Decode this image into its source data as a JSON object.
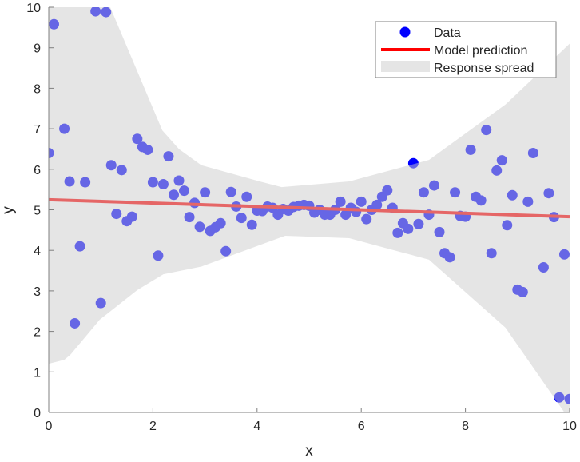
{
  "chart_data": {
    "type": "scatter",
    "title": "",
    "xlabel": "x",
    "ylabel": "y",
    "xlim": [
      0,
      10
    ],
    "ylim": [
      0,
      10
    ],
    "xticks": [
      0,
      2,
      4,
      6,
      8,
      10
    ],
    "yticks": [
      0,
      1,
      2,
      3,
      4,
      5,
      6,
      7,
      8,
      9,
      10
    ],
    "grid": false,
    "legend": {
      "placement": "top-right",
      "entries": [
        "Data",
        "Model prediction",
        "Response spread"
      ]
    },
    "colors": {
      "data": "#0000ff",
      "model": "#ff0000",
      "spread": "#cbcbcb",
      "axis": "#808080"
    },
    "series": [
      {
        "name": "Data",
        "kind": "scatter",
        "points": [
          [
            0,
            6.4
          ],
          [
            0.1,
            9.58
          ],
          [
            0.3,
            7.0
          ],
          [
            0.4,
            5.7
          ],
          [
            0.5,
            2.2
          ],
          [
            0.6,
            4.1
          ],
          [
            0.7,
            5.68
          ],
          [
            0.9,
            9.9
          ],
          [
            1.0,
            2.7
          ],
          [
            1.1,
            9.88
          ],
          [
            1.2,
            6.1
          ],
          [
            1.3,
            4.9
          ],
          [
            1.4,
            5.98
          ],
          [
            1.5,
            4.72
          ],
          [
            1.6,
            4.83
          ],
          [
            1.7,
            6.75
          ],
          [
            1.8,
            6.55
          ],
          [
            1.9,
            6.48
          ],
          [
            2.0,
            5.68
          ],
          [
            2.1,
            3.87
          ],
          [
            2.2,
            5.63
          ],
          [
            2.3,
            6.32
          ],
          [
            2.4,
            5.37
          ],
          [
            2.5,
            5.72
          ],
          [
            2.6,
            5.47
          ],
          [
            2.7,
            4.82
          ],
          [
            2.8,
            5.17
          ],
          [
            2.9,
            4.58
          ],
          [
            3.0,
            5.43
          ],
          [
            3.1,
            4.48
          ],
          [
            3.2,
            4.57
          ],
          [
            3.3,
            4.67
          ],
          [
            3.4,
            3.98
          ],
          [
            3.5,
            5.44
          ],
          [
            3.6,
            5.08
          ],
          [
            3.7,
            4.8
          ],
          [
            3.8,
            5.32
          ],
          [
            3.9,
            4.63
          ],
          [
            4.0,
            4.98
          ],
          [
            4.1,
            4.97
          ],
          [
            4.2,
            5.08
          ],
          [
            4.3,
            5.05
          ],
          [
            4.4,
            4.88
          ],
          [
            4.5,
            5.02
          ],
          [
            4.6,
            4.98
          ],
          [
            4.7,
            5.07
          ],
          [
            4.8,
            5.1
          ],
          [
            4.9,
            5.12
          ],
          [
            5.0,
            5.1
          ],
          [
            5.1,
            4.93
          ],
          [
            5.2,
            5.0
          ],
          [
            5.3,
            4.88
          ],
          [
            5.4,
            4.88
          ],
          [
            5.5,
            5.0
          ],
          [
            5.6,
            5.2
          ],
          [
            5.7,
            4.88
          ],
          [
            5.8,
            5.05
          ],
          [
            5.9,
            4.95
          ],
          [
            6.0,
            5.2
          ],
          [
            6.1,
            4.77
          ],
          [
            6.2,
            5.0
          ],
          [
            6.3,
            5.12
          ],
          [
            6.4,
            5.32
          ],
          [
            6.5,
            5.48
          ],
          [
            6.6,
            5.05
          ],
          [
            6.7,
            4.43
          ],
          [
            6.8,
            4.67
          ],
          [
            6.9,
            4.53
          ],
          [
            7.0,
            6.15
          ],
          [
            7.1,
            4.65
          ],
          [
            7.2,
            5.43
          ],
          [
            7.3,
            4.88
          ],
          [
            7.4,
            5.6
          ],
          [
            7.5,
            4.45
          ],
          [
            7.6,
            3.93
          ],
          [
            7.7,
            3.83
          ],
          [
            7.8,
            5.43
          ],
          [
            7.9,
            4.85
          ],
          [
            8.0,
            4.83
          ],
          [
            8.1,
            6.48
          ],
          [
            8.2,
            5.32
          ],
          [
            8.3,
            5.23
          ],
          [
            8.4,
            6.97
          ],
          [
            8.5,
            3.93
          ],
          [
            8.6,
            5.97
          ],
          [
            8.7,
            6.22
          ],
          [
            8.8,
            4.62
          ],
          [
            8.9,
            5.36
          ],
          [
            9.0,
            3.03
          ],
          [
            9.1,
            2.97
          ],
          [
            9.2,
            5.2
          ],
          [
            9.3,
            6.4
          ],
          [
            9.5,
            3.58
          ],
          [
            9.6,
            5.41
          ],
          [
            9.7,
            4.82
          ],
          [
            9.8,
            0.37
          ],
          [
            9.9,
            3.9
          ],
          [
            10.0,
            0.33
          ]
        ]
      },
      {
        "name": "Model prediction",
        "kind": "line",
        "points": [
          [
            0,
            5.25
          ],
          [
            10,
            4.83
          ]
        ]
      },
      {
        "name": "Response spread",
        "kind": "band",
        "upper": [
          [
            0,
            10
          ],
          [
            1.18,
            10
          ],
          [
            2.18,
            6.96
          ],
          [
            2.5,
            6.5
          ],
          [
            2.93,
            6.1
          ],
          [
            4.05,
            5.7
          ],
          [
            4.47,
            5.56
          ],
          [
            5.77,
            5.7
          ],
          [
            7.3,
            6.23
          ],
          [
            8.77,
            7.6
          ],
          [
            10,
            9.1
          ]
        ],
        "lower": [
          [
            0,
            1.2
          ],
          [
            0.3,
            1.3
          ],
          [
            0.42,
            1.43
          ],
          [
            0.98,
            2.29
          ],
          [
            1.7,
            3.02
          ],
          [
            2.2,
            3.41
          ],
          [
            2.93,
            3.6
          ],
          [
            4.05,
            4.13
          ],
          [
            4.54,
            4.36
          ],
          [
            5.77,
            4.3
          ],
          [
            7.3,
            3.77
          ],
          [
            8.77,
            2.09
          ],
          [
            9.9,
            0
          ],
          [
            10,
            0
          ]
        ]
      }
    ]
  }
}
